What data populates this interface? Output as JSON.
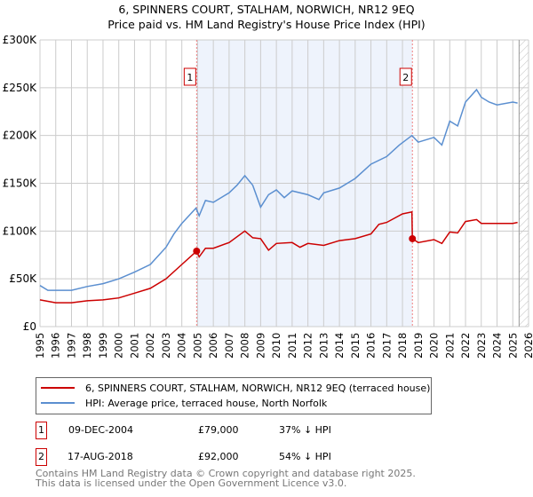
{
  "chart_data": {
    "type": "line",
    "title": "6, SPINNERS COURT, STALHAM, NORWICH, NR12 9EQ",
    "subtitle": "Price paid vs. HM Land Registry's House Price Index (HPI)",
    "xlim": [
      1995,
      2026
    ],
    "ylim": [
      0,
      300000
    ],
    "x_ticks": [
      "1995",
      "1996",
      "1997",
      "1998",
      "1999",
      "2000",
      "2001",
      "2002",
      "2003",
      "2004",
      "2005",
      "2006",
      "2007",
      "2008",
      "2009",
      "2010",
      "2011",
      "2012",
      "2013",
      "2014",
      "2015",
      "2016",
      "2017",
      "2018",
      "2019",
      "2020",
      "2021",
      "2022",
      "2023",
      "2024",
      "2025",
      "2026"
    ],
    "y_ticks": [
      {
        "v": 0,
        "label": "£0"
      },
      {
        "v": 50000,
        "label": "£50K"
      },
      {
        "v": 100000,
        "label": "£100K"
      },
      {
        "v": 150000,
        "label": "£150K"
      },
      {
        "v": 200000,
        "label": "£200K"
      },
      {
        "v": 250000,
        "label": "£250K"
      },
      {
        "v": 300000,
        "label": "£300K"
      }
    ],
    "grid": true,
    "shaded_range": [
      2004.94,
      2018.63
    ],
    "forecast_hatch_from": 2025.4,
    "series": [
      {
        "name": "6, SPINNERS COURT, STALHAM, NORWICH, NR12 9EQ (terraced house)",
        "color": "#cc0000",
        "x": [
          1995,
          1996,
          1997,
          1998,
          1999,
          2000,
          2001,
          2002,
          2003,
          2004,
          2004.94,
          2005.1,
          2005.5,
          2006,
          2007,
          2008,
          2008.5,
          2009,
          2009.5,
          2010,
          2011,
          2011.5,
          2012,
          2013,
          2014,
          2015,
          2016,
          2016.5,
          2017,
          2018,
          2018.6,
          2018.63,
          2019,
          2020,
          2020.5,
          2021,
          2021.5,
          2022,
          2022.7,
          2023,
          2024,
          2025,
          2025.3
        ],
        "y": [
          28000,
          25000,
          25000,
          27000,
          28000,
          30000,
          35000,
          40000,
          50000,
          65000,
          79000,
          73000,
          82000,
          82000,
          88000,
          100000,
          93000,
          92000,
          80000,
          87000,
          88000,
          83000,
          87000,
          85000,
          90000,
          92000,
          97000,
          107000,
          109000,
          118000,
          120000,
          92000,
          88000,
          91000,
          87000,
          99000,
          98000,
          110000,
          112000,
          108000,
          108000,
          108000,
          109000
        ]
      },
      {
        "name": "HPI: Average price, terraced house, North Norfolk",
        "color": "#5b8fd0",
        "x": [
          1995,
          1995.5,
          1996,
          1997,
          1998,
          1999,
          2000,
          2001,
          2002,
          2003,
          2003.5,
          2004,
          2004.9,
          2005.1,
          2005.5,
          2006,
          2007,
          2007.5,
          2008,
          2008.5,
          2009,
          2009.5,
          2010,
          2010.5,
          2011,
          2012,
          2012.7,
          2013,
          2014,
          2015,
          2016,
          2017,
          2017.8,
          2018.6,
          2019,
          2020,
          2020.5,
          2021,
          2021.5,
          2022,
          2022.7,
          2023,
          2023.5,
          2024,
          2025,
          2025.3
        ],
        "y": [
          43000,
          38000,
          38000,
          38000,
          42000,
          45000,
          50000,
          57000,
          65000,
          83000,
          97000,
          108000,
          124000,
          116000,
          132000,
          130000,
          140000,
          148000,
          158000,
          148000,
          125000,
          138000,
          143000,
          135000,
          142000,
          138000,
          133000,
          140000,
          145000,
          155000,
          170000,
          178000,
          190000,
          200000,
          193000,
          198000,
          190000,
          215000,
          210000,
          235000,
          248000,
          240000,
          235000,
          232000,
          235000,
          234000
        ]
      }
    ],
    "annotations": [
      {
        "label": "1",
        "x": 2004.94,
        "y": 79000
      },
      {
        "label": "2",
        "x": 2018.63,
        "y": 92000
      }
    ]
  },
  "legend": {
    "red": "6, SPINNERS COURT, STALHAM, NORWICH, NR12 9EQ (terraced house)",
    "blue": "HPI: Average price, terraced house, North Norfolk"
  },
  "transactions": [
    {
      "num": "1",
      "date": "09-DEC-2004",
      "price": "£79,000",
      "hpi": "37% ↓ HPI"
    },
    {
      "num": "2",
      "date": "17-AUG-2018",
      "price": "£92,000",
      "hpi": "54% ↓ HPI"
    }
  ],
  "footer": {
    "line1": "Contains HM Land Registry data © Crown copyright and database right 2025.",
    "line2": "This data is licensed under the Open Government Licence v3.0."
  }
}
